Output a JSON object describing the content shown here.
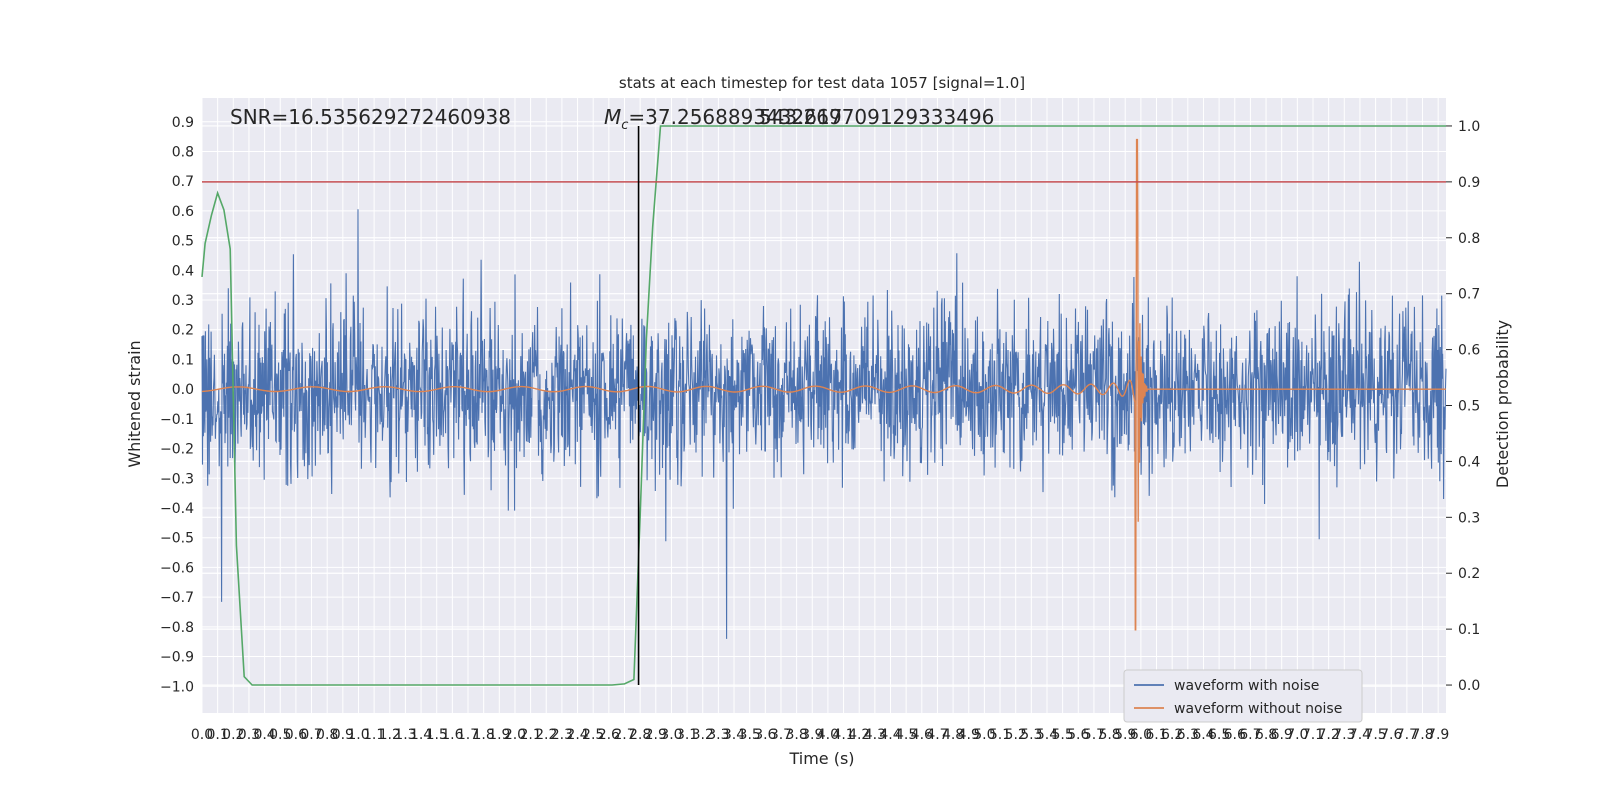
{
  "chart_data": {
    "type": "line",
    "title": "stats at each timestep for test data 1057 [signal=1.0]",
    "xlabel": "Time (s)",
    "ylabel_left": "Whitened strain",
    "ylabel_right": "Detection probability",
    "xlim": [
      0.0,
      7.95
    ],
    "ylim_left": [
      -1.09,
      0.98
    ],
    "ylim_right": [
      -0.05,
      1.05
    ],
    "x_ticks": [
      "0.0",
      "0.1",
      "0.2",
      "0.3",
      "0.4",
      "0.5",
      "0.6",
      "0.7",
      "0.8",
      "0.9",
      "1.0",
      "1.1",
      "1.2",
      "1.3",
      "1.4",
      "1.5",
      "1.6",
      "1.7",
      "1.8",
      "1.9",
      "2.0",
      "2.1",
      "2.2",
      "2.3",
      "2.4",
      "2.5",
      "2.6",
      "2.7",
      "2.8",
      "2.9",
      "3.0",
      "3.1",
      "3.2",
      "3.3",
      "3.4",
      "3.5",
      "3.6",
      "3.7",
      "3.8",
      "3.9",
      "4.0",
      "4.1",
      "4.2",
      "4.3",
      "4.4",
      "4.5",
      "4.6",
      "4.7",
      "4.8",
      "4.9",
      "5.0",
      "5.1",
      "5.2",
      "5.3",
      "5.4",
      "5.5",
      "5.6",
      "5.7",
      "5.8",
      "5.9",
      "6.0",
      "6.1",
      "6.2",
      "6.3",
      "6.4",
      "6.5",
      "6.6",
      "6.7",
      "6.8",
      "6.9",
      "7.0",
      "7.1",
      "7.2",
      "7.3",
      "7.4",
      "7.5",
      "7.6",
      "7.7",
      "7.8",
      "7.9"
    ],
    "y_ticks_left": [
      "0.9",
      "0.8",
      "0.7",
      "0.6",
      "0.5",
      "0.4",
      "0.3",
      "0.2",
      "0.1",
      "0.0",
      "−0.1",
      "−0.2",
      "−0.3",
      "−0.4",
      "−0.5",
      "−0.6",
      "−0.7",
      "−0.8",
      "−0.9",
      "−1.0"
    ],
    "y_ticks_right": [
      "1.0",
      "0.9",
      "0.8",
      "0.7",
      "0.6",
      "0.5",
      "0.4",
      "0.3",
      "0.2",
      "0.1",
      "0.0"
    ],
    "threshold_right": 0.9,
    "threshold_color": "#c44e52",
    "detection_time_s": 2.79,
    "annotations": {
      "snr": "SNR=16.535629272460938",
      "mc_symbol": "M",
      "mc_sub": "c",
      "mc_value_a": "=37.2568893432617",
      "mc_value_b": "543.269709129333496"
    },
    "series": [
      {
        "name": "waveform with noise",
        "color": "#4c72b0",
        "axis": "left"
      },
      {
        "name": "waveform without noise",
        "color": "#dd8452",
        "axis": "left",
        "merger_time_s": 5.98,
        "peak_strain": 0.84,
        "min_strain": -0.81
      },
      {
        "name": "detection probability",
        "color": "#55a868",
        "axis": "right",
        "x": [
          0.0,
          0.02,
          0.06,
          0.1,
          0.14,
          0.18,
          0.22,
          0.27,
          0.32,
          0.5,
          1.0,
          1.5,
          2.0,
          2.5,
          2.62,
          2.7,
          2.76,
          2.8,
          2.84,
          2.88,
          2.93,
          3.2,
          4.0,
          5.0,
          6.0,
          7.0,
          7.95
        ],
        "y": [
          0.73,
          0.79,
          0.84,
          0.88,
          0.85,
          0.78,
          0.25,
          0.015,
          0.0,
          0.0,
          0.0,
          0.0,
          0.0,
          0.0,
          0.0,
          0.002,
          0.01,
          0.3,
          0.62,
          0.82,
          1.0,
          1.0,
          1.0,
          1.0,
          1.0,
          1.0,
          1.0
        ]
      }
    ]
  }
}
